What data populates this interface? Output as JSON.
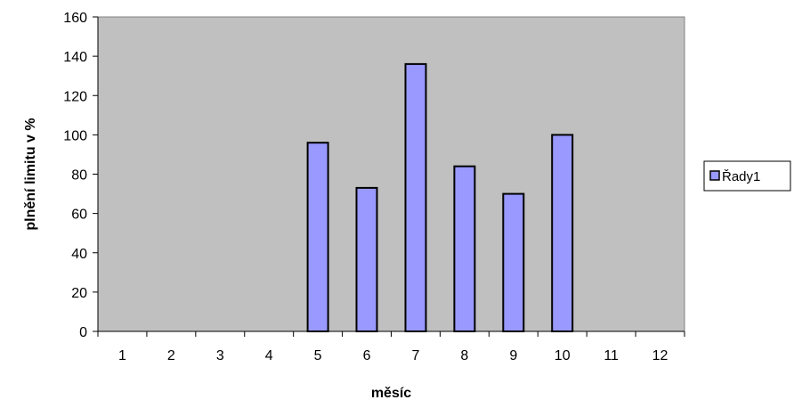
{
  "chart_data": {
    "type": "bar",
    "title": "",
    "xlabel": "měsíc",
    "ylabel": "plnění limitu v %",
    "categories": [
      "1",
      "2",
      "3",
      "4",
      "5",
      "6",
      "7",
      "8",
      "9",
      "10",
      "11",
      "12"
    ],
    "series": [
      {
        "name": "Řady1",
        "values": [
          0,
          0,
          0,
          0,
          96,
          73,
          136,
          84,
          70,
          100,
          0,
          0
        ],
        "color": "#9999ff"
      }
    ],
    "ylim": [
      0,
      160
    ],
    "yticks": [
      0,
      20,
      40,
      60,
      80,
      100,
      120,
      140,
      160
    ],
    "grid": false,
    "legend_position": "right",
    "colors": {
      "plot_background": "#c0c0c0",
      "bar_fill": "#9999ff",
      "bar_stroke": "#000000"
    }
  }
}
